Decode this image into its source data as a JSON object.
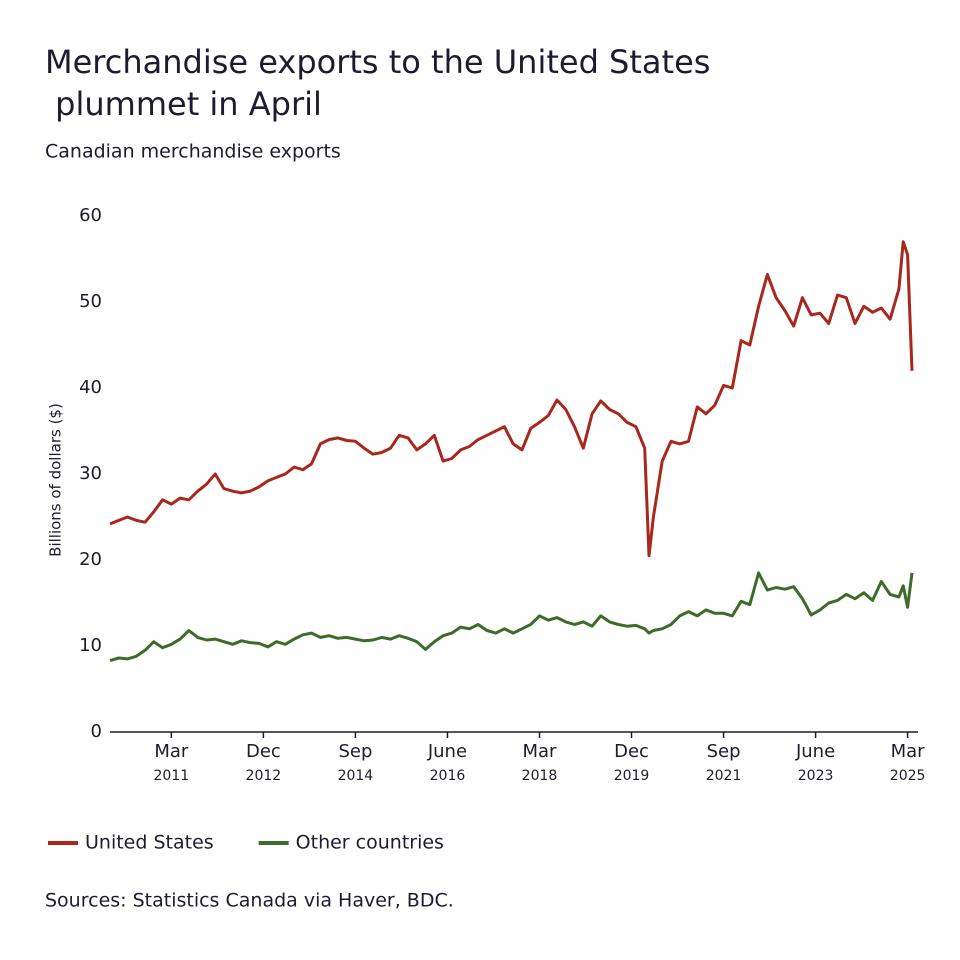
{
  "chart_data": {
    "type": "line",
    "title": "Merchandise exports to the United States plummet in April",
    "subtitle": "Canadian merchandise exports",
    "y_label": "Billions of dollars ($)",
    "source": "Sources: Statistics Canada via Haver, BDC.",
    "x": [
      "2010-01",
      "2010-03",
      "2010-05",
      "2010-07",
      "2010-09",
      "2010-11",
      "2011-01",
      "2011-03",
      "2011-05",
      "2011-07",
      "2011-09",
      "2011-11",
      "2012-01",
      "2012-03",
      "2012-05",
      "2012-07",
      "2012-09",
      "2012-11",
      "2013-01",
      "2013-03",
      "2013-05",
      "2013-07",
      "2013-09",
      "2013-11",
      "2014-01",
      "2014-03",
      "2014-05",
      "2014-07",
      "2014-09",
      "2014-11",
      "2015-01",
      "2015-03",
      "2015-05",
      "2015-07",
      "2015-09",
      "2015-11",
      "2016-01",
      "2016-03",
      "2016-05",
      "2016-07",
      "2016-09",
      "2016-11",
      "2017-01",
      "2017-03",
      "2017-05",
      "2017-07",
      "2017-09",
      "2017-11",
      "2018-01",
      "2018-03",
      "2018-05",
      "2018-07",
      "2018-09",
      "2018-11",
      "2019-01",
      "2019-03",
      "2019-05",
      "2019-07",
      "2019-09",
      "2019-11",
      "2020-01",
      "2020-03",
      "2020-04",
      "2020-05",
      "2020-07",
      "2020-09",
      "2020-11",
      "2021-01",
      "2021-03",
      "2021-05",
      "2021-07",
      "2021-09",
      "2021-11",
      "2022-01",
      "2022-03",
      "2022-05",
      "2022-07",
      "2022-09",
      "2022-11",
      "2023-01",
      "2023-03",
      "2023-05",
      "2023-07",
      "2023-09",
      "2023-11",
      "2024-01",
      "2024-03",
      "2024-05",
      "2024-07",
      "2024-09",
      "2024-11",
      "2025-01",
      "2025-02",
      "2025-03",
      "2025-04"
    ],
    "series": [
      {
        "name": "United States",
        "color": "#a8281e",
        "values": [
          24.2,
          24.6,
          25.0,
          24.6,
          24.4,
          25.6,
          27.0,
          26.5,
          27.2,
          27.0,
          28.0,
          28.8,
          30.0,
          28.3,
          28.0,
          27.8,
          28.0,
          28.5,
          29.2,
          29.6,
          30.0,
          30.8,
          30.5,
          31.2,
          33.5,
          34.0,
          34.2,
          33.9,
          33.8,
          33.0,
          32.3,
          32.5,
          33.0,
          34.5,
          34.2,
          32.8,
          33.5,
          34.5,
          31.5,
          31.8,
          32.8,
          33.2,
          34.0,
          34.5,
          35.0,
          35.5,
          33.5,
          32.8,
          35.3,
          36.0,
          36.8,
          38.6,
          37.5,
          35.5,
          33.0,
          37.0,
          38.5,
          37.5,
          37.0,
          36.0,
          35.5,
          33.0,
          20.5,
          25.0,
          31.5,
          33.8,
          33.5,
          33.8,
          37.8,
          37.0,
          38.0,
          40.3,
          40.0,
          45.5,
          45.0,
          49.5,
          53.2,
          50.5,
          49.0,
          47.2,
          50.5,
          48.5,
          48.7,
          47.5,
          50.8,
          50.5,
          47.5,
          49.5,
          48.8,
          49.3,
          48.0,
          51.5,
          57.0,
          55.5,
          42.0
        ]
      },
      {
        "name": "Other countries",
        "color": "#3f6b2a",
        "values": [
          8.3,
          8.6,
          8.5,
          8.8,
          9.5,
          10.5,
          9.8,
          10.2,
          10.8,
          11.8,
          11.0,
          10.7,
          10.8,
          10.5,
          10.2,
          10.6,
          10.4,
          10.3,
          9.9,
          10.5,
          10.2,
          10.8,
          11.3,
          11.5,
          11.0,
          11.2,
          10.9,
          11.0,
          10.8,
          10.6,
          10.7,
          11.0,
          10.8,
          11.2,
          10.9,
          10.5,
          9.6,
          10.5,
          11.2,
          11.5,
          12.2,
          12.0,
          12.5,
          11.8,
          11.5,
          12.0,
          11.5,
          12.0,
          12.5,
          13.5,
          13.0,
          13.3,
          12.8,
          12.5,
          12.8,
          12.3,
          13.5,
          12.8,
          12.5,
          12.3,
          12.4,
          12.0,
          11.5,
          11.8,
          12.0,
          12.5,
          13.5,
          14.0,
          13.5,
          14.2,
          13.8,
          13.8,
          13.5,
          15.2,
          14.8,
          18.5,
          16.5,
          16.8,
          16.6,
          16.9,
          15.5,
          13.6,
          14.2,
          15.0,
          15.3,
          16.0,
          15.5,
          16.2,
          15.3,
          17.5,
          16.0,
          15.7,
          17.0,
          14.5,
          18.5
        ]
      }
    ],
    "xlim": [
      "2010-01",
      "2025-04"
    ],
    "xticks": [
      {
        "value": "2011-03",
        "label": "Mar\n2011"
      },
      {
        "value": "2012-12",
        "label": "Dec\n2012"
      },
      {
        "value": "2014-09",
        "label": "Sep\n2014"
      },
      {
        "value": "2016-06",
        "label": "June\n2016"
      },
      {
        "value": "2018-03",
        "label": "Mar\n2018"
      },
      {
        "value": "2019-12",
        "label": "Dec\n2019"
      },
      {
        "value": "2021-09",
        "label": "Sep\n2021"
      },
      {
        "value": "2023-06",
        "label": "June\n2023"
      },
      {
        "value": "2025-03",
        "label": "Mar\n2025"
      }
    ],
    "ylim": [
      0,
      60
    ],
    "yticks": [
      0,
      10,
      20,
      30,
      40,
      50,
      60
    ],
    "grid": false,
    "legend": "bottom-left"
  }
}
